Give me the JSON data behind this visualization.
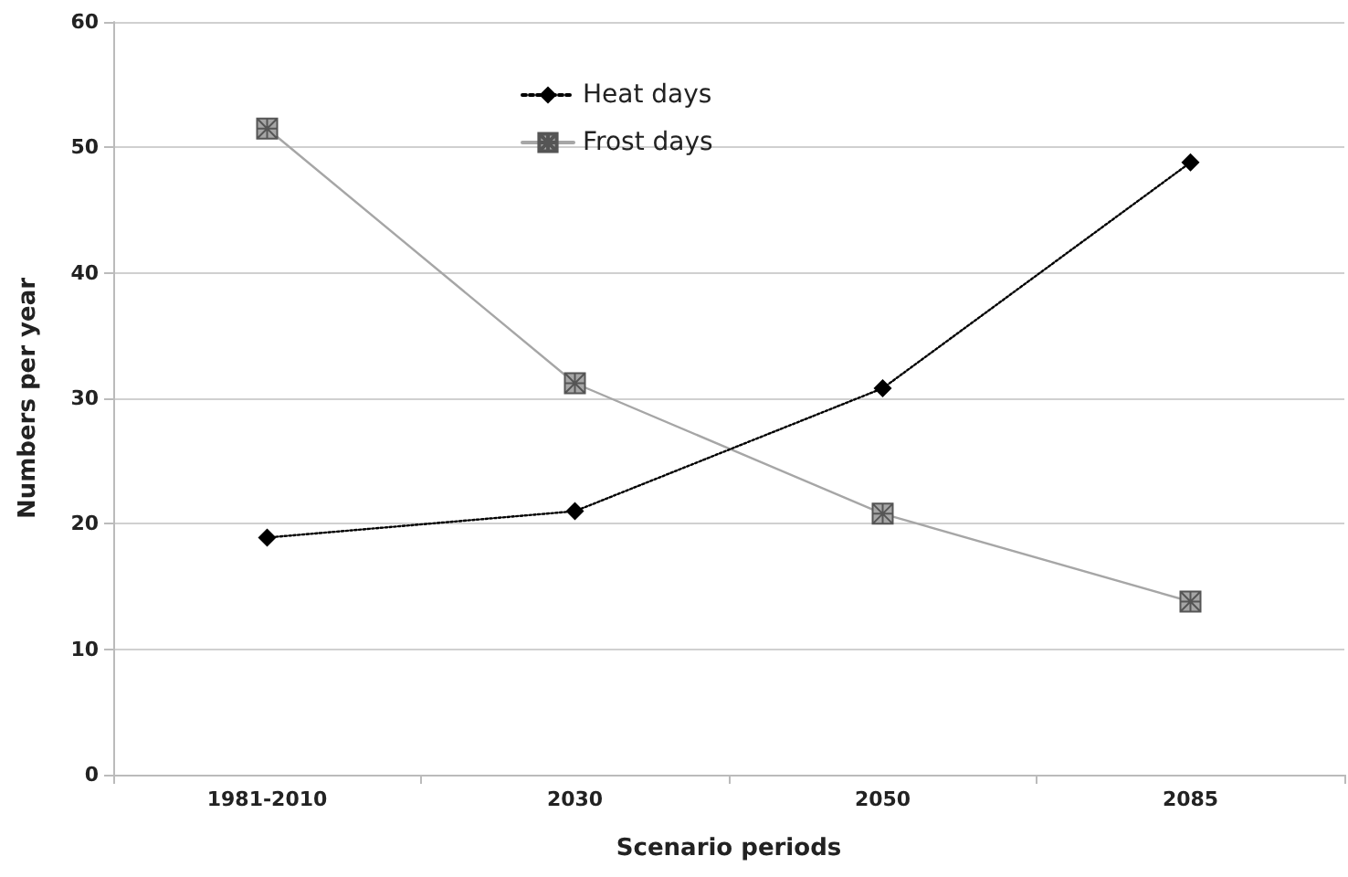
{
  "chart_data": {
    "type": "line",
    "xlabel": "Scenario periods",
    "ylabel": "Numbers per year",
    "categories": [
      "1981-2010",
      "2030",
      "2050",
      "2085"
    ],
    "series": [
      {
        "name": "Heat days",
        "color": "#000000",
        "marker": "diamond",
        "line_style": "dotted",
        "values": [
          18.9,
          21.0,
          30.8,
          48.8
        ]
      },
      {
        "name": "Frost days",
        "color": "#a6a6a6",
        "marker": "cross",
        "line_style": "solid",
        "values": [
          51.5,
          31.2,
          20.8,
          13.8
        ]
      }
    ],
    "ylim": [
      0,
      60
    ],
    "yticks": [
      0,
      10,
      20,
      30,
      40,
      50,
      60
    ],
    "grid": "y",
    "legend": "top"
  }
}
